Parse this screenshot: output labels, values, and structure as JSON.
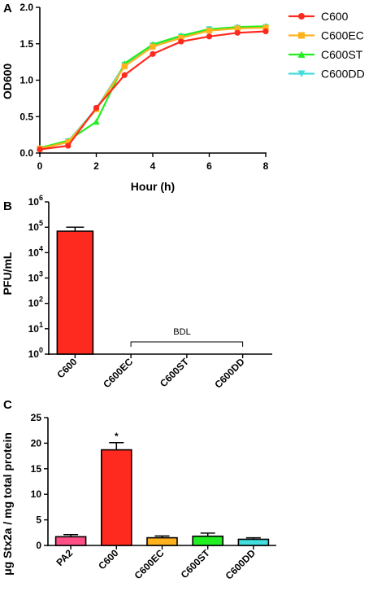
{
  "panels": [
    {
      "letter": "A"
    },
    {
      "letter": "B"
    },
    {
      "letter": "C"
    }
  ],
  "colors": {
    "C600": "#ff2a1f",
    "C600EC": "#ffb21d",
    "C600ST": "#22ee22",
    "C600DD": "#44dddd",
    "PA2": "#ff4f86"
  },
  "chart_data": [
    {
      "type": "line",
      "xlabel": "Hour (h)",
      "ylabel": "OD600",
      "xlim": [
        0,
        8
      ],
      "ylim": [
        0,
        2.0
      ],
      "x_ticks": [
        0,
        2,
        4,
        6,
        8
      ],
      "y_ticks": [
        "0.0",
        "0.5",
        "1.0",
        "1.5",
        "2.0"
      ],
      "x": [
        0,
        1,
        2,
        3,
        4,
        5,
        6,
        7,
        8
      ],
      "legend_position": "right",
      "series": [
        {
          "name": "C600",
          "marker": "circle",
          "values": [
            0.05,
            0.1,
            0.62,
            1.07,
            1.36,
            1.53,
            1.6,
            1.65,
            1.67
          ]
        },
        {
          "name": "C600EC",
          "marker": "square",
          "values": [
            0.06,
            0.15,
            0.6,
            1.19,
            1.46,
            1.58,
            1.68,
            1.71,
            1.72
          ]
        },
        {
          "name": "C600ST",
          "marker": "triangle-up",
          "values": [
            0.07,
            0.17,
            0.43,
            1.23,
            1.49,
            1.61,
            1.7,
            1.73,
            1.74
          ]
        },
        {
          "name": "C600DD",
          "marker": "triangle-down",
          "values": [
            0.06,
            0.16,
            0.61,
            1.21,
            1.48,
            1.6,
            1.7,
            1.72,
            1.73
          ]
        }
      ]
    },
    {
      "type": "bar",
      "scale": "log",
      "ylabel": "PFU/mL",
      "ylim": [
        1,
        1000000
      ],
      "y_ticks": [
        {
          "base": "10",
          "exp": "0"
        },
        {
          "base": "10",
          "exp": "1"
        },
        {
          "base": "10",
          "exp": "2"
        },
        {
          "base": "10",
          "exp": "3"
        },
        {
          "base": "10",
          "exp": "4"
        },
        {
          "base": "10",
          "exp": "5"
        },
        {
          "base": "10",
          "exp": "6"
        }
      ],
      "categories": [
        "C600",
        "C600EC",
        "C600ST",
        "C600DD"
      ],
      "values": [
        70000,
        null,
        null,
        null
      ],
      "errors": [
        30000,
        null,
        null,
        null
      ],
      "annotation": "BDL"
    },
    {
      "type": "bar",
      "ylabel": "μg Stx2a / mg total protein",
      "ylim": [
        0,
        25
      ],
      "y_ticks": [
        0,
        5,
        10,
        15,
        20,
        25
      ],
      "categories": [
        "PA2",
        "C600",
        "C600EC",
        "C600ST",
        "C600DD"
      ],
      "values": [
        1.7,
        18.7,
        1.5,
        1.8,
        1.2
      ],
      "errors": [
        0.4,
        1.4,
        0.35,
        0.6,
        0.3
      ],
      "annotations": [
        {
          "category": "C600",
          "text": "*"
        }
      ]
    }
  ]
}
